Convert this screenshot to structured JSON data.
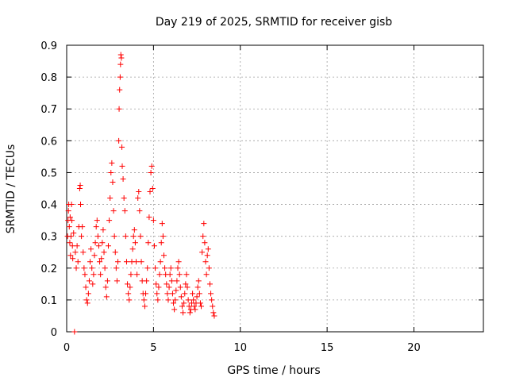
{
  "chart_data": {
    "type": "scatter",
    "title": "Day 219 of 2025, SRMTID for receiver gisb",
    "xlabel": "GPS time / hours",
    "ylabel": "SRMTID / TECUs",
    "xlim": [
      0,
      24
    ],
    "ylim": [
      0,
      0.9
    ],
    "xticks": [
      0,
      5,
      10,
      15,
      20
    ],
    "yticks": [
      0,
      0.1,
      0.2,
      0.3,
      0.4,
      0.5,
      0.6,
      0.7,
      0.8,
      0.9
    ],
    "grid": true,
    "marker": "+",
    "color": "#ff0000",
    "series": [
      {
        "name": "SRMTID",
        "points": [
          [
            0.05,
            0.3
          ],
          [
            0.08,
            0.35
          ],
          [
            0.1,
            0.38
          ],
          [
            0.12,
            0.4
          ],
          [
            0.15,
            0.33
          ],
          [
            0.18,
            0.28
          ],
          [
            0.2,
            0.36
          ],
          [
            0.22,
            0.24
          ],
          [
            0.25,
            0.3
          ],
          [
            0.28,
            0.4
          ],
          [
            0.3,
            0.35
          ],
          [
            0.33,
            0.27
          ],
          [
            0.35,
            0.23
          ],
          [
            0.4,
            0.31
          ],
          [
            0.45,
            0.0
          ],
          [
            0.5,
            0.25
          ],
          [
            0.55,
            0.2
          ],
          [
            0.6,
            0.27
          ],
          [
            0.65,
            0.22
          ],
          [
            0.7,
            0.33
          ],
          [
            0.75,
            0.45
          ],
          [
            0.78,
            0.46
          ],
          [
            0.8,
            0.4
          ],
          [
            0.85,
            0.3
          ],
          [
            0.9,
            0.33
          ],
          [
            0.95,
            0.25
          ],
          [
            1.0,
            0.2
          ],
          [
            1.05,
            0.18
          ],
          [
            1.1,
            0.14
          ],
          [
            1.15,
            0.1
          ],
          [
            1.2,
            0.09
          ],
          [
            1.25,
            0.12
          ],
          [
            1.3,
            0.16
          ],
          [
            1.35,
            0.22
          ],
          [
            1.4,
            0.26
          ],
          [
            1.45,
            0.2
          ],
          [
            1.5,
            0.15
          ],
          [
            1.55,
            0.18
          ],
          [
            1.6,
            0.24
          ],
          [
            1.65,
            0.28
          ],
          [
            1.7,
            0.33
          ],
          [
            1.75,
            0.35
          ],
          [
            1.8,
            0.3
          ],
          [
            1.85,
            0.27
          ],
          [
            1.9,
            0.22
          ],
          [
            1.95,
            0.18
          ],
          [
            2.0,
            0.23
          ],
          [
            2.05,
            0.28
          ],
          [
            2.1,
            0.32
          ],
          [
            2.15,
            0.25
          ],
          [
            2.2,
            0.2
          ],
          [
            2.25,
            0.14
          ],
          [
            2.3,
            0.11
          ],
          [
            2.35,
            0.16
          ],
          [
            2.4,
            0.27
          ],
          [
            2.45,
            0.35
          ],
          [
            2.5,
            0.42
          ],
          [
            2.55,
            0.5
          ],
          [
            2.6,
            0.53
          ],
          [
            2.65,
            0.47
          ],
          [
            2.7,
            0.38
          ],
          [
            2.75,
            0.3
          ],
          [
            2.8,
            0.25
          ],
          [
            2.85,
            0.2
          ],
          [
            2.9,
            0.16
          ],
          [
            2.95,
            0.22
          ],
          [
            3.0,
            0.6
          ],
          [
            3.02,
            0.7
          ],
          [
            3.05,
            0.76
          ],
          [
            3.08,
            0.8
          ],
          [
            3.1,
            0.84
          ],
          [
            3.12,
            0.87
          ],
          [
            3.15,
            0.86
          ],
          [
            3.18,
            0.58
          ],
          [
            3.2,
            0.52
          ],
          [
            3.25,
            0.48
          ],
          [
            3.3,
            0.42
          ],
          [
            3.35,
            0.38
          ],
          [
            3.4,
            0.3
          ],
          [
            3.45,
            0.22
          ],
          [
            3.5,
            0.15
          ],
          [
            3.55,
            0.12
          ],
          [
            3.6,
            0.1
          ],
          [
            3.65,
            0.14
          ],
          [
            3.7,
            0.18
          ],
          [
            3.75,
            0.22
          ],
          [
            3.8,
            0.26
          ],
          [
            3.85,
            0.3
          ],
          [
            3.9,
            0.32
          ],
          [
            3.95,
            0.28
          ],
          [
            4.0,
            0.22
          ],
          [
            4.05,
            0.18
          ],
          [
            4.1,
            0.42
          ],
          [
            4.15,
            0.44
          ],
          [
            4.2,
            0.38
          ],
          [
            4.25,
            0.3
          ],
          [
            4.3,
            0.22
          ],
          [
            4.35,
            0.16
          ],
          [
            4.4,
            0.12
          ],
          [
            4.45,
            0.1
          ],
          [
            4.5,
            0.08
          ],
          [
            4.55,
            0.12
          ],
          [
            4.6,
            0.16
          ],
          [
            4.65,
            0.2
          ],
          [
            4.7,
            0.28
          ],
          [
            4.75,
            0.36
          ],
          [
            4.8,
            0.44
          ],
          [
            4.85,
            0.5
          ],
          [
            4.9,
            0.52
          ],
          [
            4.95,
            0.45
          ],
          [
            5.0,
            0.35
          ],
          [
            5.05,
            0.27
          ],
          [
            5.1,
            0.2
          ],
          [
            5.15,
            0.15
          ],
          [
            5.2,
            0.12
          ],
          [
            5.25,
            0.1
          ],
          [
            5.3,
            0.14
          ],
          [
            5.35,
            0.18
          ],
          [
            5.4,
            0.22
          ],
          [
            5.45,
            0.28
          ],
          [
            5.5,
            0.34
          ],
          [
            5.55,
            0.3
          ],
          [
            5.6,
            0.24
          ],
          [
            5.65,
            0.2
          ],
          [
            5.7,
            0.18
          ],
          [
            5.75,
            0.15
          ],
          [
            5.8,
            0.12
          ],
          [
            5.85,
            0.1
          ],
          [
            5.9,
            0.14
          ],
          [
            5.95,
            0.18
          ],
          [
            6.0,
            0.2
          ],
          [
            6.05,
            0.16
          ],
          [
            6.1,
            0.12
          ],
          [
            6.15,
            0.09
          ],
          [
            6.2,
            0.07
          ],
          [
            6.25,
            0.1
          ],
          [
            6.3,
            0.13
          ],
          [
            6.35,
            0.16
          ],
          [
            6.4,
            0.2
          ],
          [
            6.45,
            0.22
          ],
          [
            6.5,
            0.18
          ],
          [
            6.55,
            0.14
          ],
          [
            6.6,
            0.11
          ],
          [
            6.65,
            0.08
          ],
          [
            6.7,
            0.06
          ],
          [
            6.75,
            0.09
          ],
          [
            6.8,
            0.12
          ],
          [
            6.85,
            0.15
          ],
          [
            6.9,
            0.18
          ],
          [
            6.95,
            0.14
          ],
          [
            7.0,
            0.1
          ],
          [
            7.05,
            0.08
          ],
          [
            7.1,
            0.06
          ],
          [
            7.15,
            0.07
          ],
          [
            7.2,
            0.09
          ],
          [
            7.25,
            0.12
          ],
          [
            7.3,
            0.1
          ],
          [
            7.35,
            0.08
          ],
          [
            7.4,
            0.07
          ],
          [
            7.45,
            0.09
          ],
          [
            7.5,
            0.11
          ],
          [
            7.55,
            0.14
          ],
          [
            7.6,
            0.16
          ],
          [
            7.65,
            0.12
          ],
          [
            7.7,
            0.09
          ],
          [
            7.75,
            0.08
          ],
          [
            7.8,
            0.25
          ],
          [
            7.85,
            0.3
          ],
          [
            7.9,
            0.34
          ],
          [
            7.95,
            0.28
          ],
          [
            8.0,
            0.22
          ],
          [
            8.05,
            0.18
          ],
          [
            8.1,
            0.24
          ],
          [
            8.15,
            0.26
          ],
          [
            8.2,
            0.2
          ],
          [
            8.25,
            0.15
          ],
          [
            8.3,
            0.12
          ],
          [
            8.35,
            0.1
          ],
          [
            8.4,
            0.08
          ],
          [
            8.45,
            0.06
          ],
          [
            8.5,
            0.05
          ]
        ]
      }
    ]
  }
}
